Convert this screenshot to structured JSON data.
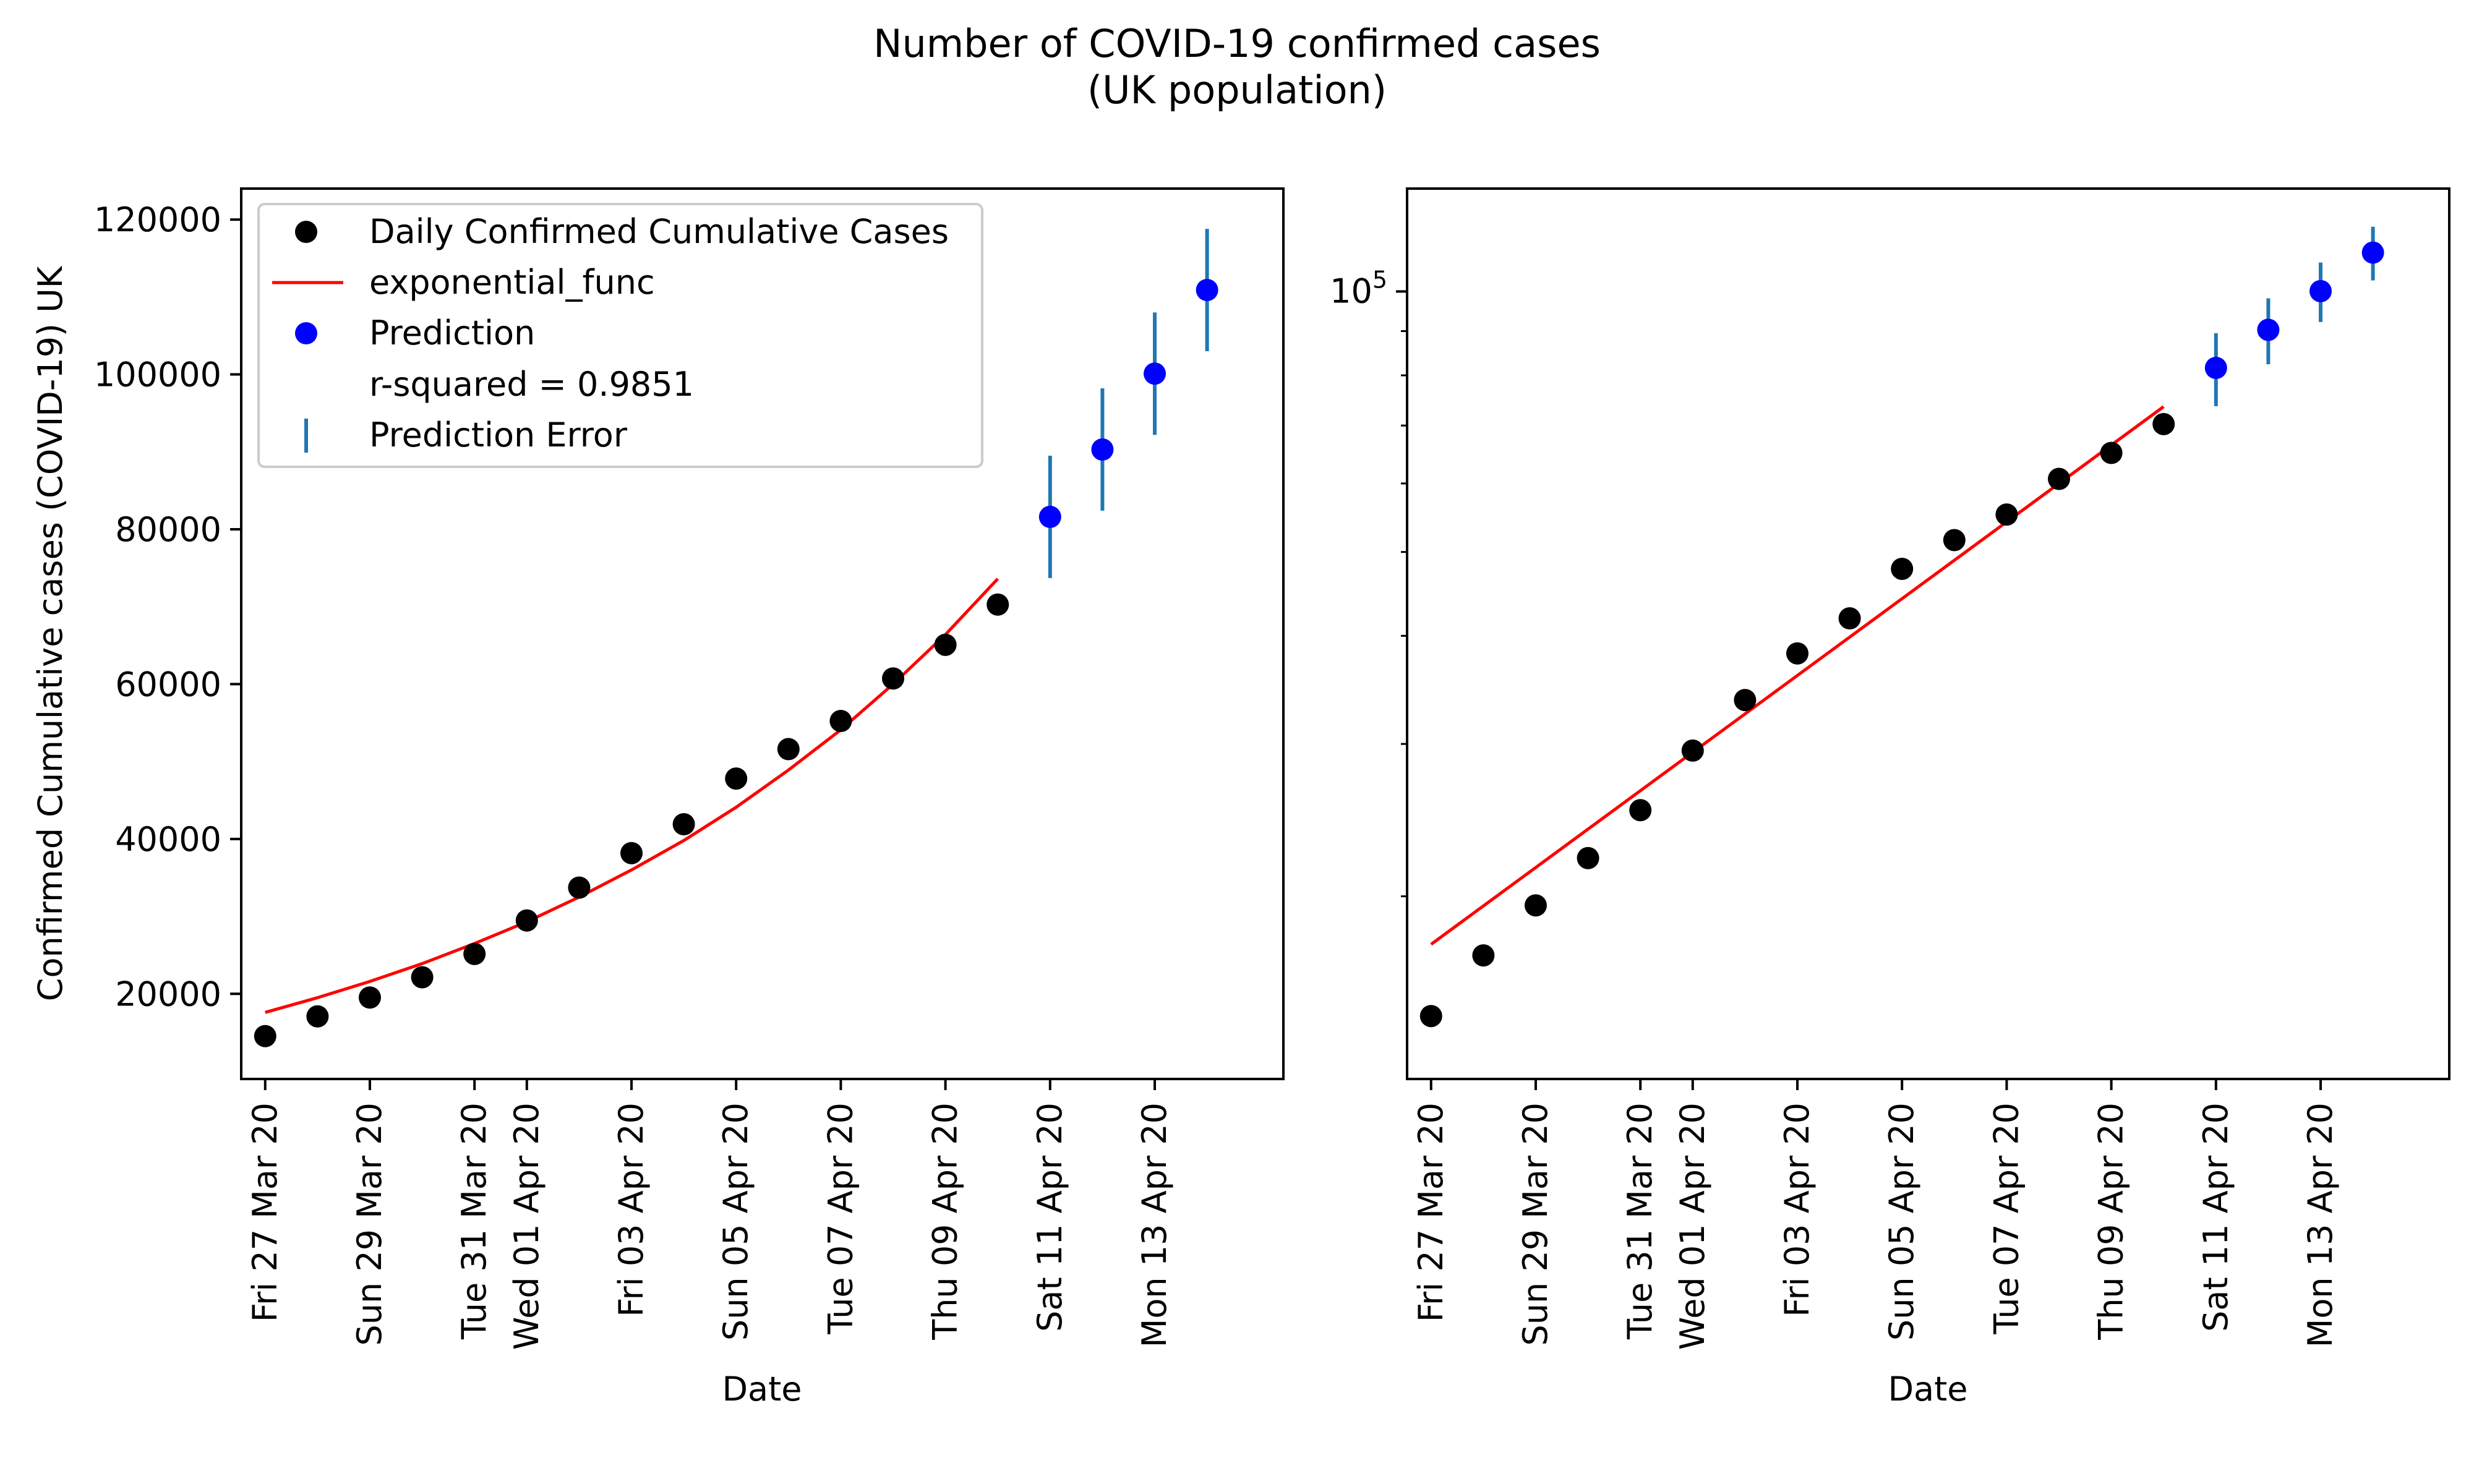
{
  "figure": {
    "title_line1": "Number of COVID-19 confirmed cases",
    "title_line2": "(UK population)"
  },
  "colors": {
    "observed": "#000000",
    "fit": "#ff0000",
    "prediction": "#0000ff",
    "error_bar": "#1f77b4"
  },
  "chart_data": [
    {
      "type": "scatter",
      "scale": "linear",
      "xlabel": "Date",
      "ylabel": "Confirmed Cumulative cases (COVID-19) UK",
      "xlim": [
        "2020-03-26 13:00",
        "2020-04-15 11:00"
      ],
      "ylim": [
        9000,
        124000
      ],
      "y_ticks": [
        20000,
        40000,
        60000,
        80000,
        100000,
        120000
      ],
      "y_tick_labels": [
        "20000",
        "40000",
        "60000",
        "80000",
        "100000",
        "120000"
      ],
      "x_ticks": [
        "2020-03-27",
        "2020-03-29",
        "2020-03-31",
        "2020-04-01",
        "2020-04-03",
        "2020-04-05",
        "2020-04-07",
        "2020-04-09",
        "2020-04-11",
        "2020-04-13"
      ],
      "x_tick_labels": [
        "Fri 27 Mar 20",
        "Sun 29 Mar 20",
        "Tue 31 Mar 20",
        "Wed 01 Apr 20",
        "Fri 03 Apr 20",
        "Sun 05 Apr 20",
        "Tue 07 Apr 20",
        "Thu 09 Apr 20",
        "Sat 11 Apr 20",
        "Mon 13 Apr 20"
      ],
      "legend": {
        "location": "upper-left",
        "entries": [
          "Daily Confirmed Cumulative Cases",
          "exponential_func",
          "Prediction",
          "r-squared = 0.9851",
          "Prediction Error"
        ]
      },
      "series": [
        {
          "name": "Daily Confirmed Cumulative Cases",
          "kind": "scatter",
          "x": [
            "2020-03-27",
            "2020-03-28",
            "2020-03-29",
            "2020-03-30",
            "2020-03-31",
            "2020-04-01",
            "2020-04-02",
            "2020-04-03",
            "2020-04-04",
            "2020-04-05",
            "2020-04-06",
            "2020-04-07",
            "2020-04-08",
            "2020-04-09",
            "2020-04-10"
          ],
          "y": [
            14543,
            17089,
            19522,
            22141,
            25150,
            29474,
            33718,
            38168,
            41903,
            47806,
            51608,
            55242,
            60733,
            65077,
            70272
          ]
        },
        {
          "name": "exponential_func",
          "kind": "line",
          "x": [
            "2020-03-27",
            "2020-03-28",
            "2020-03-29",
            "2020-03-30",
            "2020-03-31",
            "2020-04-01",
            "2020-04-02",
            "2020-04-03",
            "2020-04-04",
            "2020-04-05",
            "2020-04-06",
            "2020-04-07",
            "2020-04-08",
            "2020-04-09",
            "2020-04-10"
          ],
          "y": [
            17600,
            19500,
            21600,
            23900,
            26500,
            29300,
            32500,
            36000,
            39800,
            44100,
            48900,
            54100,
            60000,
            66400,
            73600
          ]
        },
        {
          "name": "Prediction",
          "kind": "scatter",
          "x": [
            "2020-04-11",
            "2020-04-12",
            "2020-04-13",
            "2020-04-14"
          ],
          "y": [
            81600,
            90300,
            100100,
            110900
          ]
        },
        {
          "name": "Prediction Error",
          "kind": "errorbar",
          "x": [
            "2020-04-11",
            "2020-04-12",
            "2020-04-13",
            "2020-04-14"
          ],
          "y_low": [
            73700,
            82400,
            92200,
            103000
          ],
          "y_high": [
            89500,
            98200,
            108000,
            118800
          ]
        }
      ]
    },
    {
      "type": "scatter",
      "scale": "log",
      "xlabel": "Date",
      "ylabel": "",
      "xlim": [
        "2020-03-26 13:00",
        "2020-04-15 11:00"
      ],
      "ylim": [
        12300,
        131500
      ],
      "y_ticks": [
        100000
      ],
      "y_tick_labels": [
        "10^5"
      ],
      "y_minor_ticks": [
        20000,
        30000,
        40000,
        50000,
        60000,
        70000,
        80000,
        90000
      ],
      "x_ticks": [
        "2020-03-27",
        "2020-03-29",
        "2020-03-31",
        "2020-04-01",
        "2020-04-03",
        "2020-04-05",
        "2020-04-07",
        "2020-04-09",
        "2020-04-11",
        "2020-04-13"
      ],
      "x_tick_labels": [
        "Fri 27 Mar 20",
        "Sun 29 Mar 20",
        "Tue 31 Mar 20",
        "Wed 01 Apr 20",
        "Fri 03 Apr 20",
        "Sun 05 Apr 20",
        "Tue 07 Apr 20",
        "Thu 09 Apr 20",
        "Sat 11 Apr 20",
        "Mon 13 Apr 20"
      ],
      "series": [
        {
          "name": "Daily Confirmed Cumulative Cases",
          "kind": "scatter",
          "x": [
            "2020-03-27",
            "2020-03-28",
            "2020-03-29",
            "2020-03-30",
            "2020-03-31",
            "2020-04-01",
            "2020-04-02",
            "2020-04-03",
            "2020-04-04",
            "2020-04-05",
            "2020-04-06",
            "2020-04-07",
            "2020-04-08",
            "2020-04-09",
            "2020-04-10"
          ],
          "y": [
            14543,
            17089,
            19522,
            22141,
            25150,
            29474,
            33718,
            38168,
            41903,
            47806,
            51608,
            55242,
            60733,
            65077,
            70272
          ]
        },
        {
          "name": "exponential_func",
          "kind": "line",
          "x": [
            "2020-03-27",
            "2020-04-10"
          ],
          "y": [
            17600,
            73600
          ]
        },
        {
          "name": "Prediction",
          "kind": "scatter",
          "x": [
            "2020-04-11",
            "2020-04-12",
            "2020-04-13",
            "2020-04-14"
          ],
          "y": [
            81600,
            90300,
            100100,
            110900
          ]
        },
        {
          "name": "Prediction Error",
          "kind": "errorbar",
          "x": [
            "2020-04-11",
            "2020-04-12",
            "2020-04-13",
            "2020-04-14"
          ],
          "y_low": [
            73700,
            82400,
            92200,
            103000
          ],
          "y_high": [
            89500,
            98200,
            108000,
            118800
          ]
        }
      ]
    }
  ]
}
